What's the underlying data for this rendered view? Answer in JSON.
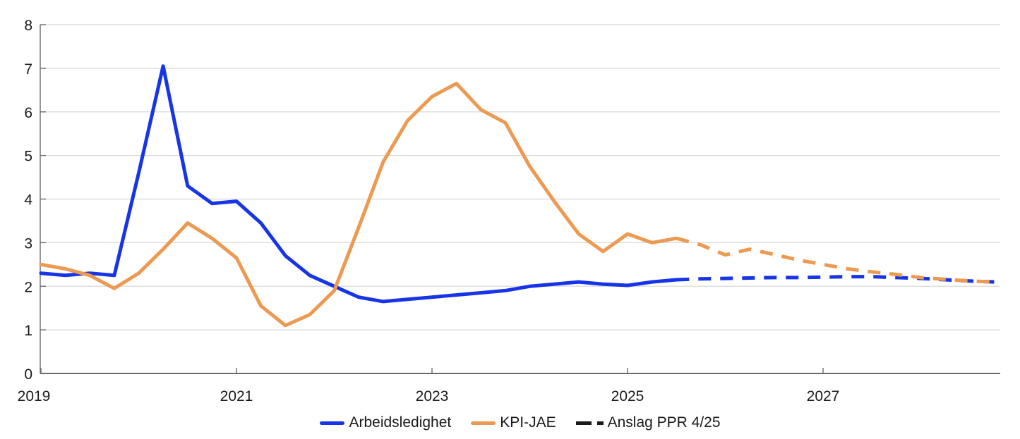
{
  "page": {
    "background": "#ffffff"
  },
  "colors": {
    "unemployment_line": "#1734e6",
    "inflation_line": "#ec9a52",
    "forecast_legend_dash": "#1a1a1a",
    "grid": "#d9d9d9",
    "axis": "#6b6b6b",
    "tick_label": "#1a1a1a"
  },
  "chart_data": {
    "type": "line",
    "title": "",
    "xlabel": "",
    "ylabel": "",
    "x_start": 2019,
    "x_step": 0.25,
    "x_unit": "quarter",
    "xlim": [
      2019,
      2028.82
    ],
    "ylim": [
      0,
      8
    ],
    "yticks": [
      0,
      1,
      2,
      3,
      4,
      5,
      6,
      7,
      8
    ],
    "xticks": [
      2019,
      2021,
      2023,
      2025,
      2027
    ],
    "grid": true,
    "legend_position": "bottom",
    "series": [
      {
        "name": "Arbeidsledighet",
        "color": "#1734e6",
        "style": "solid",
        "start_index": 0,
        "values": [
          2.3,
          2.25,
          2.3,
          2.25,
          4.6,
          7.05,
          4.3,
          3.9,
          3.95,
          3.45,
          2.7,
          2.25,
          2.0,
          1.75,
          1.65,
          1.7,
          1.75,
          1.8,
          1.85,
          1.9,
          2.0,
          2.05,
          2.1,
          2.05,
          2.02,
          2.1,
          2.15
        ]
      },
      {
        "name": "Arbeidsledighet – Anslag PPR 4/25",
        "color": "#1734e6",
        "style": "dashed",
        "start_index": 26,
        "values": [
          2.15,
          2.17,
          2.18,
          2.19,
          2.2,
          2.2,
          2.21,
          2.22,
          2.22,
          2.2,
          2.18,
          2.15,
          2.12,
          2.1
        ]
      },
      {
        "name": "KPI-JAE",
        "color": "#ec9a52",
        "style": "solid",
        "start_index": 0,
        "values": [
          2.5,
          2.4,
          2.25,
          1.95,
          2.3,
          2.85,
          3.45,
          3.1,
          2.65,
          1.55,
          1.1,
          1.35,
          1.9,
          3.35,
          4.85,
          5.8,
          6.35,
          6.65,
          6.05,
          5.75,
          4.75,
          3.95,
          3.2,
          2.8,
          3.2,
          3.0,
          3.1
        ]
      },
      {
        "name": "KPI-JAE – Anslag PPR 4/25",
        "color": "#ec9a52",
        "style": "dashed",
        "start_index": 26,
        "values": [
          3.1,
          2.95,
          2.72,
          2.85,
          2.73,
          2.6,
          2.5,
          2.4,
          2.33,
          2.27,
          2.2,
          2.16,
          2.12,
          2.1
        ]
      }
    ]
  },
  "legend": {
    "items": [
      {
        "label": "Arbeidsledighet",
        "color": "#1734e6",
        "style": "solid"
      },
      {
        "label": "KPI-JAE",
        "color": "#ec9a52",
        "style": "solid"
      },
      {
        "label": "Anslag PPR 4/25",
        "color": "#1a1a1a",
        "style": "dashed"
      }
    ]
  }
}
